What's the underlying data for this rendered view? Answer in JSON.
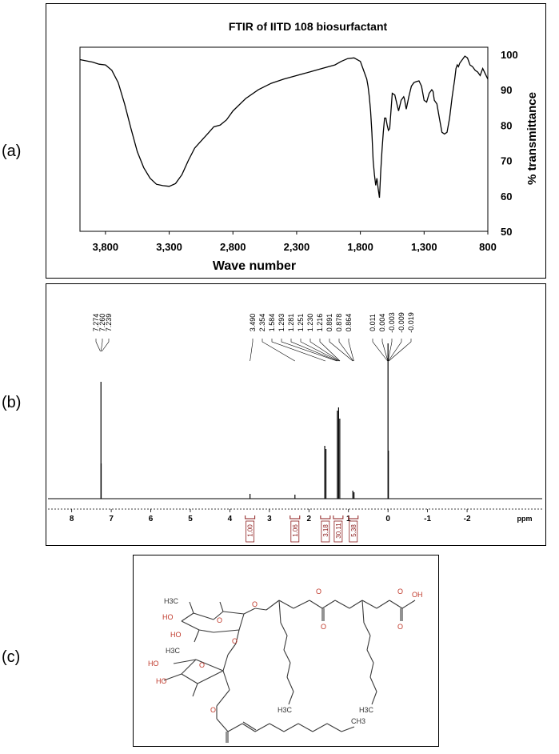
{
  "panels": {
    "a": "(a)",
    "b": "(b)",
    "c": "(c)"
  },
  "chart_data": [
    {
      "type": "line",
      "title": "FTIR of IITD 108 biosurfactant",
      "xlabel": "Wave number",
      "ylabel": "% transmittance",
      "xlim": [
        4000,
        800
      ],
      "ylim": [
        50,
        102
      ],
      "x_ticks": [
        "3,800",
        "3,300",
        "2,800",
        "2,300",
        "1,800",
        "1,300",
        "800"
      ],
      "x_tick_values": [
        3800,
        3300,
        2800,
        2300,
        1800,
        1300,
        800
      ],
      "y_ticks": [
        50,
        60,
        70,
        80,
        90,
        100
      ],
      "grid": false,
      "series": [
        {
          "x": [
            4000,
            3900,
            3850,
            3800,
            3750,
            3700,
            3650,
            3600,
            3550,
            3500,
            3450,
            3400,
            3350,
            3300,
            3250,
            3200,
            3150,
            3100,
            3050,
            3000,
            2950,
            2900,
            2850,
            2800,
            2700,
            2600,
            2500,
            2400,
            2300,
            2200,
            2100,
            2000,
            1950,
            1900,
            1850,
            1800,
            1780,
            1760,
            1750,
            1740,
            1730,
            1720,
            1710,
            1700,
            1690,
            1680,
            1670,
            1660,
            1650,
            1640,
            1630,
            1620,
            1610,
            1600,
            1590,
            1580,
            1570,
            1560,
            1550,
            1530,
            1510,
            1500,
            1480,
            1460,
            1455,
            1440,
            1420,
            1400,
            1380,
            1360,
            1340,
            1320,
            1300,
            1280,
            1260,
            1240,
            1230,
            1220,
            1200,
            1180,
            1160,
            1140,
            1120,
            1100,
            1080,
            1060,
            1050,
            1040,
            1030,
            1020,
            1000,
            980,
            960,
            940,
            920,
            900,
            880,
            860,
            840,
            820,
            800
          ],
          "y": [
            98.5,
            97.8,
            97.2,
            97.0,
            95.5,
            92.0,
            86.0,
            79.0,
            72.5,
            68.0,
            65.0,
            63.3,
            62.9,
            62.7,
            63.5,
            66.0,
            70.0,
            73.5,
            75.5,
            77.5,
            79.5,
            80.0,
            81.5,
            84.0,
            87.5,
            90.0,
            91.8,
            93.0,
            94.0,
            95.0,
            96.0,
            97.0,
            98.0,
            98.8,
            99.0,
            98.0,
            96.0,
            94.0,
            93.0,
            91.0,
            88.0,
            84.0,
            78.0,
            70.0,
            66.0,
            63.0,
            65.0,
            62.0,
            59.5,
            67.0,
            73.0,
            78.0,
            82.0,
            82.0,
            80.0,
            78.5,
            79.0,
            84.0,
            89.0,
            88.5,
            85.5,
            84.0,
            87.0,
            88.0,
            87.5,
            84.5,
            88.0,
            91.0,
            92.0,
            92.3,
            92.5,
            91.0,
            87.0,
            86.5,
            89.0,
            90.0,
            89.5,
            87.0,
            86.0,
            82.0,
            78.0,
            77.5,
            78.0,
            82.0,
            88.0,
            93.0,
            96.0,
            97.0,
            96.5,
            97.5,
            98.5,
            99.5,
            99.0,
            97.0,
            96.5,
            95.5,
            95.0,
            94.0,
            96.0,
            94.5,
            93.0
          ]
        }
      ]
    },
    {
      "type": "line",
      "title": "",
      "xlabel": "ppm",
      "xlim": [
        8.6,
        -3.9
      ],
      "x_ticks": [
        8,
        7,
        6,
        5,
        4,
        3,
        2,
        1,
        0,
        -1,
        -2
      ],
      "grid": false,
      "peak_labels": [
        "7.274",
        "7.260",
        "7.239",
        "3.490",
        "2.354",
        "1.584",
        "1.293",
        "1.281",
        "1.251",
        "1.230",
        "1.216",
        "0.891",
        "0.878",
        "0.864",
        "0.011",
        "0.004",
        "-0.003",
        "-0.009",
        "-0.019"
      ],
      "peaks": [
        {
          "ppm": 7.26,
          "height": 0.73
        },
        {
          "ppm": 7.255,
          "height": 0.22
        },
        {
          "ppm": 3.49,
          "height": 0.03
        },
        {
          "ppm": 2.354,
          "height": 0.025
        },
        {
          "ppm": 1.6,
          "height": 0.33
        },
        {
          "ppm": 1.57,
          "height": 0.31
        },
        {
          "ppm": 1.28,
          "height": 0.55
        },
        {
          "ppm": 1.25,
          "height": 0.57
        },
        {
          "ppm": 1.22,
          "height": 0.5
        },
        {
          "ppm": 0.89,
          "height": 0.05
        },
        {
          "ppm": 0.86,
          "height": 0.04
        },
        {
          "ppm": 0.0,
          "height": 0.97
        },
        {
          "ppm": -0.01,
          "height": 0.3
        }
      ],
      "integrals": [
        {
          "ppm": 3.49,
          "label": "1.00"
        },
        {
          "ppm": 2.354,
          "label": "1.06"
        },
        {
          "ppm": 1.584,
          "label": "3.18"
        },
        {
          "ppm": 1.26,
          "label": "30.11"
        },
        {
          "ppm": 0.878,
          "label": "5.38"
        }
      ]
    }
  ],
  "structure": {
    "atoms": [
      "H3C",
      "HO",
      "HO",
      "O",
      "O",
      "O",
      "O",
      "O",
      "O",
      "O",
      "OH",
      "H3C",
      "HO",
      "HO",
      "O",
      "O",
      "H3C",
      "H3C",
      "CH3"
    ],
    "colors": {
      "bond": "#3a3a3a",
      "oxygen": "#c0392b"
    }
  }
}
